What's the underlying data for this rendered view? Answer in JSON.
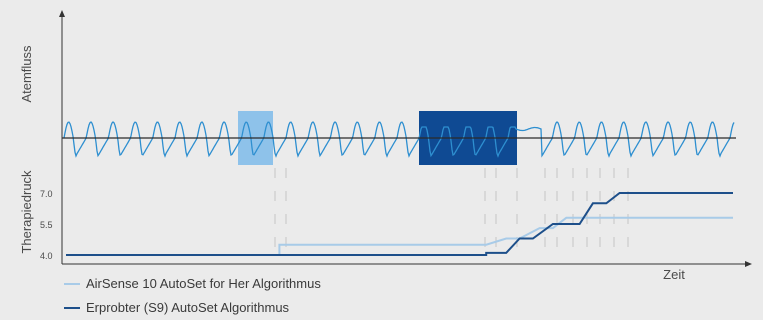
{
  "chart_data": {
    "type": "line",
    "top_panel": {
      "ylabel": "Atemfluss"
    },
    "bottom_panel": {
      "ylabel": "Therapiedruck",
      "yticks": [
        "4.0",
        "5.5",
        "7.0"
      ],
      "ylim": [
        4.0,
        7.5
      ],
      "xlabel": "Zeit",
      "series": [
        {
          "name": "AirSense 10 AutoSet for Her Algorithmus",
          "color": "#a8cbe8",
          "points": [
            [
              0,
              4.0
            ],
            [
              3.2,
              4.0
            ],
            [
              3.2,
              4.5
            ],
            [
              6.3,
              4.5
            ],
            [
              6.6,
              4.8
            ],
            [
              6.8,
              4.8
            ],
            [
              7.1,
              5.3
            ],
            [
              7.3,
              5.3
            ],
            [
              7.5,
              5.8
            ],
            [
              10.0,
              5.8
            ]
          ]
        },
        {
          "name": "Erprobter (S9) AutoSet Algorithmus",
          "color": "#1d4f8a",
          "points": [
            [
              0,
              4.0
            ],
            [
              6.3,
              4.0
            ],
            [
              6.3,
              4.1
            ],
            [
              6.6,
              4.1
            ],
            [
              6.8,
              4.8
            ],
            [
              7.0,
              4.8
            ],
            [
              7.3,
              5.5
            ],
            [
              7.7,
              5.5
            ],
            [
              7.9,
              6.5
            ],
            [
              8.1,
              6.5
            ],
            [
              8.3,
              7.0
            ],
            [
              10.0,
              7.0
            ]
          ]
        }
      ]
    },
    "colors": {
      "flow_wave": "#2e8fd0",
      "highlight_light": "#8ec2ea",
      "highlight_dark": "#0f4a93",
      "background": "#ebebeb"
    }
  }
}
